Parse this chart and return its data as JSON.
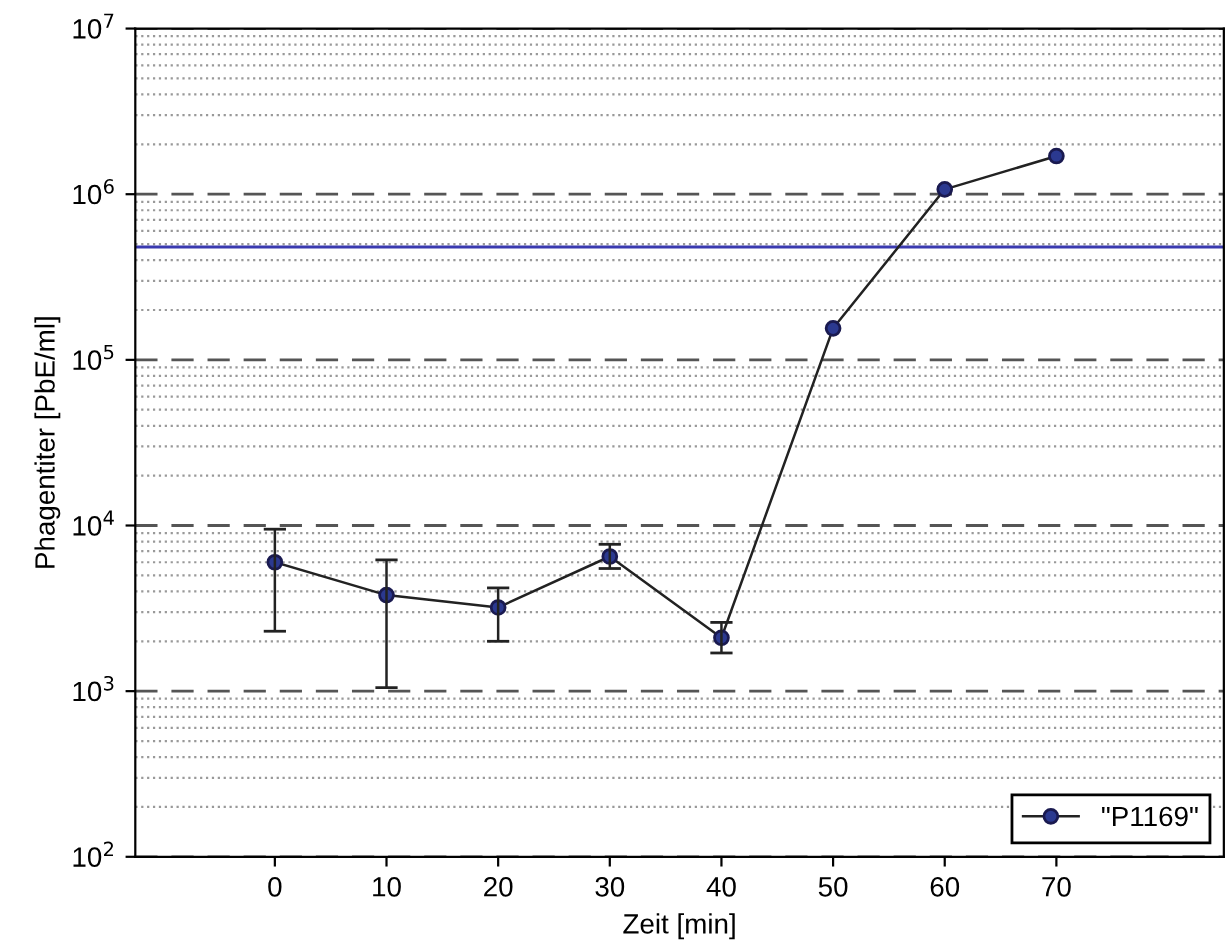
{
  "chart_data": {
    "type": "line",
    "xlabel": "Zeit [min]",
    "ylabel": "Phagentiter [PbE/ml]",
    "x": [
      0,
      10,
      20,
      30,
      40,
      50,
      60,
      70
    ],
    "series": [
      {
        "name": "\"P1169\"",
        "color": "#2b3990",
        "values": [
          6000,
          3800,
          3200,
          6500,
          2100,
          155000,
          1070000,
          1700000
        ],
        "errors": [
          [
            2300,
            9500
          ],
          [
            1050,
            6200
          ],
          [
            2000,
            4200
          ],
          [
            5500,
            7700
          ],
          [
            1700,
            2600
          ],
          null,
          null,
          null
        ]
      }
    ],
    "log": "y",
    "xlim": [
      -12.5,
      85
    ],
    "xticks": [
      0,
      10,
      20,
      30,
      40,
      50,
      60,
      70
    ],
    "ylim": [
      100,
      10000000
    ],
    "yticks": [
      {
        "value": 100,
        "label": "10$^{2}$"
      },
      {
        "value": 1000,
        "label": "10$^{3}$"
      },
      {
        "value": 10000,
        "label": "10$^{4}$"
      },
      {
        "value": 100000,
        "label": "10$^{5}$"
      },
      {
        "value": 1000000,
        "label": "10$^{6}$"
      },
      {
        "value": 10000000,
        "label": "10$^{7}$"
      }
    ],
    "ref_lines": [
      {
        "axis": "y",
        "value": 480000,
        "color": "#3a3ab0",
        "line_style": "solid"
      }
    ],
    "grid": "y",
    "legend": "bottom right",
    "marker": "circle",
    "line_style": "solid"
  }
}
